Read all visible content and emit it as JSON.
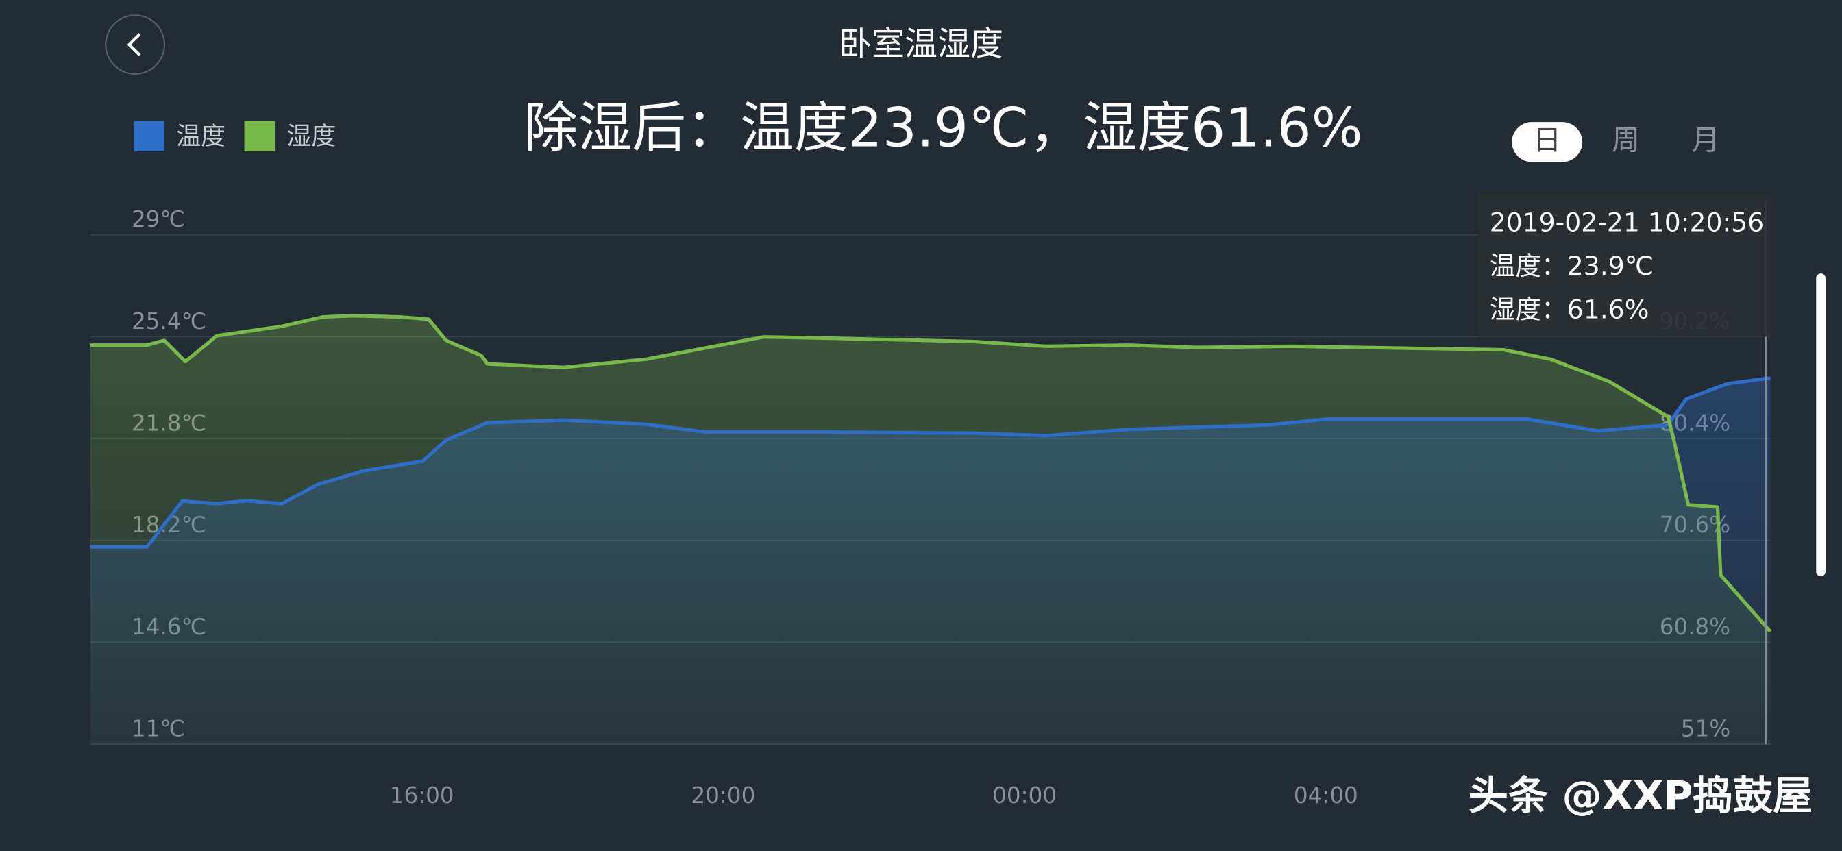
{
  "header": {
    "title": "卧室温湿度",
    "summary": "除湿后：温度23.9℃，湿度61.6%"
  },
  "tabs": [
    "日",
    "周",
    "月"
  ],
  "tooltip": {
    "time": "2019-02-21 10:20:56",
    "lines": [
      "温度：23.9℃",
      "湿度：61.6%"
    ]
  },
  "watermark": "头条 @XXP捣鼓屋",
  "chart_data": {
    "type": "line",
    "series": [
      {
        "name": "温度",
        "color": "#2f6ec6",
        "x": [
          11.6,
          12.35,
          12.82,
          13.28,
          13.67,
          14.14,
          14.61,
          15.23,
          16.01,
          16.32,
          16.87,
          17.88,
          18.98,
          19.76,
          21.32,
          23.34,
          24.28,
          25.37,
          27.24,
          28.02,
          30.67,
          31.61,
          32.54,
          32.78,
          33.32,
          33.9
        ],
        "values": [
          17.97,
          17.97,
          19.59,
          19.5,
          19.6,
          19.5,
          20.17,
          20.66,
          21.0,
          21.74,
          22.36,
          22.45,
          22.3,
          22.03,
          22.03,
          21.99,
          21.9,
          22.12,
          22.28,
          22.49,
          22.49,
          22.07,
          22.28,
          23.19,
          23.73,
          23.94
        ]
      },
      {
        "name": "湿度",
        "color": "#79b84a",
        "axis": "y2",
        "x": [
          11.6,
          12.35,
          12.58,
          12.86,
          13.28,
          14.14,
          14.69,
          15.08,
          15.71,
          16.09,
          16.32,
          16.79,
          16.87,
          17.88,
          18.98,
          20.54,
          21.32,
          23.34,
          24.28,
          25.37,
          26.3,
          27.55,
          30.36,
          30.98,
          31.76,
          32.54,
          32.62,
          32.81,
          33.2,
          33.24,
          33.9
        ],
        "values": [
          89.39,
          89.39,
          89.84,
          87.81,
          90.29,
          91.19,
          92.1,
          92.21,
          92.1,
          91.87,
          89.84,
          88.37,
          87.58,
          87.24,
          88.03,
          90.18,
          90.07,
          89.73,
          89.27,
          89.39,
          89.16,
          89.27,
          88.94,
          88.03,
          85.89,
          82.5,
          80.24,
          74.03,
          73.81,
          67.26,
          61.84
        ]
      }
    ],
    "xlim": [
      11.6,
      33.9
    ],
    "xticks": [
      {
        "value": 16,
        "label": "16:00"
      },
      {
        "value": 20,
        "label": "20:00"
      },
      {
        "value": 24,
        "label": "00:00"
      },
      {
        "value": 28,
        "label": "04:00"
      }
    ],
    "ylim": [
      11,
      29
    ],
    "yticks": [
      {
        "value": 11,
        "label": "11℃"
      },
      {
        "value": 14.6,
        "label": "14.6℃"
      },
      {
        "value": 18.2,
        "label": "18.2℃"
      },
      {
        "value": 21.8,
        "label": "21.8℃"
      },
      {
        "value": 25.4,
        "label": "25.4℃"
      },
      {
        "value": 29,
        "label": "29℃"
      }
    ],
    "y2lim": [
      51,
      100
    ],
    "y2ticks": [
      {
        "value": 51,
        "label": "51%"
      },
      {
        "value": 60.8,
        "label": "60.8%"
      },
      {
        "value": 70.6,
        "label": "70.6%"
      },
      {
        "value": 80.4,
        "label": "80.4%"
      },
      {
        "value": 90.2,
        "label": "90.2%"
      }
    ],
    "grid": true
  }
}
